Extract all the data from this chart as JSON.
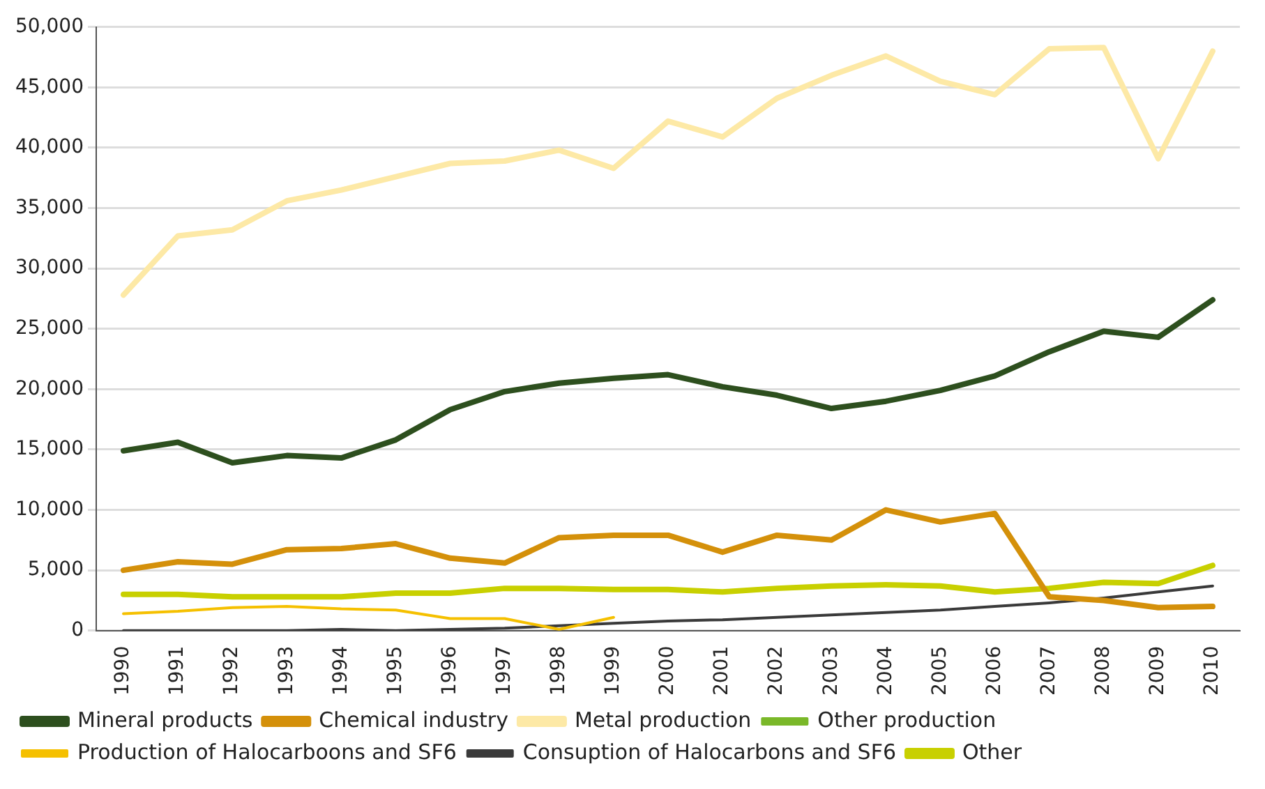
{
  "chart_data": {
    "type": "line",
    "categories": [
      "1990",
      "1991",
      "1992",
      "1993",
      "1994",
      "1995",
      "1996",
      "1997",
      "1998",
      "1999",
      "2000",
      "2001",
      "2002",
      "2003",
      "2004",
      "2005",
      "2006",
      "2007",
      "2008",
      "2009",
      "2010"
    ],
    "series": [
      {
        "name": "Mineral products",
        "color": "#2d4f1e",
        "values": [
          14900,
          15600,
          13900,
          14500,
          14300,
          15800,
          18300,
          19800,
          20500,
          20900,
          21200,
          20200,
          19500,
          18400,
          19000,
          19900,
          21100,
          23100,
          24800,
          24300,
          27400
        ]
      },
      {
        "name": "Chemical industry",
        "color": "#d4900a",
        "values": [
          5000,
          5700,
          5500,
          6700,
          6800,
          7200,
          6000,
          5600,
          7700,
          7900,
          7900,
          6500,
          7900,
          7500,
          10000,
          9000,
          9700,
          2800,
          2500,
          1900,
          2000
        ]
      },
      {
        "name": "Metal production",
        "color": "#fde9a6",
        "values": [
          27800,
          32700,
          33200,
          35600,
          36500,
          37600,
          38700,
          38900,
          39800,
          38300,
          42200,
          40900,
          44100,
          46000,
          47600,
          45500,
          44400,
          48200,
          48300,
          39100,
          48000
        ]
      },
      {
        "name": "Other production",
        "color": "#7ab829",
        "values": [
          null,
          null,
          null,
          null,
          null,
          null,
          null,
          null,
          null,
          null,
          null,
          null,
          null,
          null,
          null,
          null,
          null,
          null,
          null,
          null,
          null
        ]
      },
      {
        "name": "Production of Halocarboons and SF6",
        "color": "#f5c000",
        "values": [
          1400,
          1600,
          1900,
          2000,
          1800,
          1700,
          1000,
          1000,
          100,
          1100,
          null,
          null,
          null,
          null,
          null,
          null,
          null,
          null,
          null,
          null,
          null
        ]
      },
      {
        "name": "Consuption of Halocarbons and SF6",
        "color": "#3a3a3a",
        "values": [
          0,
          0,
          0,
          0,
          100,
          0,
          100,
          200,
          400,
          600,
          800,
          900,
          1100,
          1300,
          1500,
          1700,
          2000,
          2300,
          2700,
          3200,
          3700
        ]
      },
      {
        "name": "Other",
        "color": "#c8d000",
        "values": [
          3000,
          3000,
          2800,
          2800,
          2800,
          3100,
          3100,
          3500,
          3500,
          3400,
          3400,
          3200,
          3500,
          3700,
          3800,
          3700,
          3200,
          3500,
          4000,
          3900,
          5400
        ]
      }
    ],
    "ylim": [
      0,
      50000
    ],
    "yticks": [
      {
        "value": 0,
        "label": "0"
      },
      {
        "value": 5000,
        "label": "5,000"
      },
      {
        "value": 10000,
        "label": "10,000"
      },
      {
        "value": 15000,
        "label": "15,000"
      },
      {
        "value": 20000,
        "label": "20,000"
      },
      {
        "value": 25000,
        "label": "25,000"
      },
      {
        "value": 30000,
        "label": "30,000"
      },
      {
        "value": 35000,
        "label": "35,000"
      },
      {
        "value": 40000,
        "label": "40,000"
      },
      {
        "value": 45000,
        "label": "45,000"
      },
      {
        "value": 50000,
        "label": "50,000"
      }
    ],
    "grid": "y",
    "legend": "bottom",
    "marker": "none",
    "line_style": "solid"
  }
}
